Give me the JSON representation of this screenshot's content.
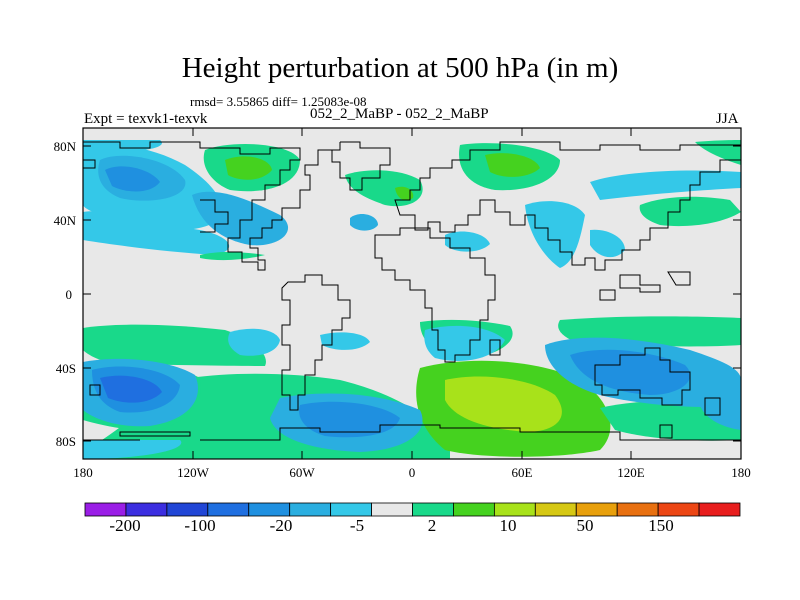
{
  "header": {
    "title": "Height perturbation at 500 hPa (in m)",
    "stats": "rmsd= 3.55865 diff= 1.25083e-08",
    "expt": "Expt = texvk1-texvk",
    "run": "052_2_MaBP - 052_2_MaBP",
    "season": "JJA"
  },
  "axes": {
    "lat_labels": [
      "80N",
      "40N",
      "0",
      "40S",
      "80S"
    ],
    "lon_labels": [
      "180",
      "120W",
      "60W",
      "0",
      "60E",
      "120E",
      "180"
    ]
  },
  "colorbar": {
    "colors": [
      "#9a1ee6",
      "#3c2ee0",
      "#2146d6",
      "#1f6fe0",
      "#1f90e0",
      "#2aaee0",
      "#34c8e8",
      "#e8e8e8",
      "#19d98a",
      "#45d21f",
      "#a8e21a",
      "#d6c814",
      "#e8a00c",
      "#e87010",
      "#ec4614",
      "#e81e1e"
    ],
    "labels": [
      "-200",
      "-100",
      "-20",
      "-5",
      "2",
      "10",
      "50",
      "150"
    ]
  },
  "legend_colors": {
    "neg_large": "#2146d6",
    "neg_mid": "#1f90e0",
    "neg_small": "#34c8e8",
    "pos_small": "#19d98a",
    "pos_mid": "#45d21f",
    "pos_large": "#a8e21a",
    "neutral": "#e8e8e8"
  }
}
